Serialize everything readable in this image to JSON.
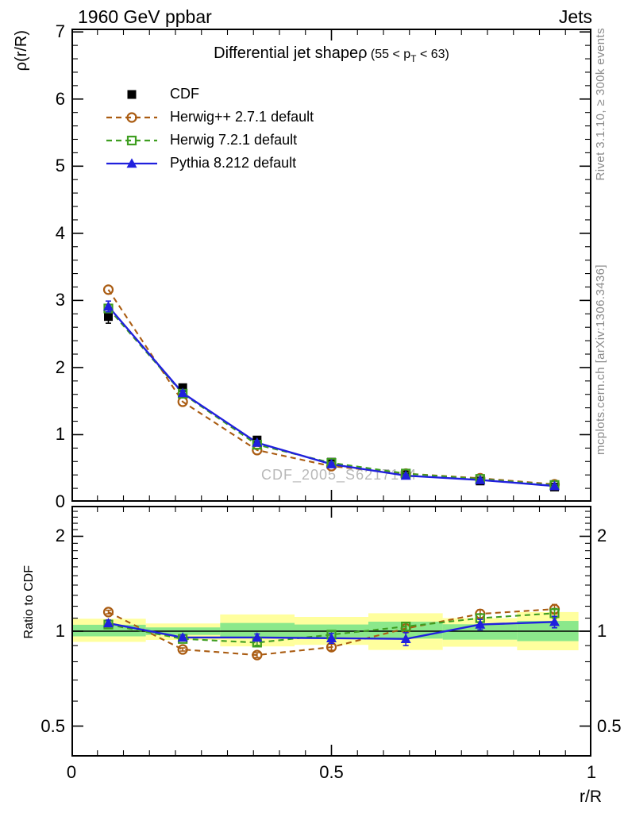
{
  "header": {
    "left": "1960 GeV ppbar",
    "right": "Jets"
  },
  "side_notes": {
    "top_right": "Rivet 3.1.10, ≥ 300k events",
    "bottom_right": "mcplots.cern.ch [arXiv:1306.3436]"
  },
  "watermark": "CDF_2005_S6217184",
  "title": {
    "text": "Differential jet shapeρ",
    "paren_pre": " (55 < p",
    "sub": "T",
    "paren_post": " < 63)"
  },
  "axes": {
    "main_ylabel": "ρ(r/R)",
    "ratio_ylabel": "Ratio to CDF",
    "xlabel": "r/R"
  },
  "colors": {
    "cdf": "#000000",
    "herwigpp": "#aa5c12",
    "herwig7": "#3f9e21",
    "pythia": "#2020dd",
    "band_yellow": "#ffff9e",
    "band_green": "#8be88b",
    "note_gray": "#8c8c8c",
    "watermark_gray": "#b8b8b8"
  },
  "chart_data": [
    {
      "type": "line",
      "panel": "main",
      "title": "Differential jet shapeρ (55 < pT < 63)",
      "ylabel": "ρ(r/R)",
      "xlim": [
        0,
        1
      ],
      "ylim": [
        0,
        7.05
      ],
      "yscale": "linear",
      "grid": false,
      "legend_position": "top-left-inside",
      "x": [
        0.071,
        0.214,
        0.357,
        0.5,
        0.643,
        0.786,
        0.929
      ],
      "series": [
        {
          "name": "CDF",
          "marker": "filled-square",
          "line": "none",
          "color": "#000000",
          "values": [
            2.76,
            1.7,
            0.92,
            0.59,
            0.41,
            0.31,
            0.22
          ],
          "yerr": [
            0.1,
            0.05,
            0.035,
            0.025,
            0.02,
            0.015,
            0.012
          ]
        },
        {
          "name": "Herwig++ 2.7.1 default",
          "marker": "open-circle",
          "line": "dashed",
          "color": "#aa5c12",
          "values": [
            3.16,
            1.49,
            0.77,
            0.53,
            0.42,
            0.35,
            0.26
          ],
          "yerr": [
            0,
            0,
            0,
            0,
            0,
            0,
            0
          ]
        },
        {
          "name": "Herwig 7.2.1 default",
          "marker": "open-square",
          "line": "dashed",
          "color": "#3f9e21",
          "values": [
            2.88,
            1.61,
            0.85,
            0.58,
            0.42,
            0.34,
            0.25
          ],
          "yerr": [
            0.05,
            0.03,
            0.02,
            0.015,
            0.012,
            0.01,
            0.01
          ]
        },
        {
          "name": "Pythia 8.212 default",
          "marker": "filled-triangle",
          "line": "solid",
          "color": "#2020dd",
          "values": [
            2.91,
            1.62,
            0.88,
            0.56,
            0.39,
            0.325,
            0.235
          ],
          "yerr": [
            0.08,
            0.04,
            0.03,
            0.02,
            0.015,
            0.012,
            0.01
          ]
        }
      ],
      "yticks": {
        "major": [
          0,
          1,
          2,
          3,
          4,
          5,
          6,
          7
        ],
        "labels": [
          "0",
          "1",
          "2",
          "3",
          "4",
          "5",
          "6",
          "7"
        ],
        "minor_step": 0.2
      },
      "xticks": {
        "major": [
          0,
          0.5,
          1
        ],
        "labels": [
          "0",
          "0.5",
          "1"
        ],
        "minor_step": 0.05,
        "show_labels": false
      }
    },
    {
      "type": "line",
      "panel": "ratio",
      "title": "Ratio to CDF",
      "ylabel": "Ratio to CDF",
      "xlabel": "r/R",
      "xlim": [
        0,
        1
      ],
      "ylim": [
        0.4,
        2.5
      ],
      "yscale": "log",
      "grid": false,
      "refline": 1,
      "x": [
        0.071,
        0.214,
        0.357,
        0.5,
        0.643,
        0.786,
        0.929
      ],
      "bands": [
        {
          "x0": 0.0,
          "x1": 0.143,
          "yellow": [
            0.925,
            1.095
          ],
          "green": [
            0.963,
            1.048
          ]
        },
        {
          "x0": 0.143,
          "x1": 0.286,
          "yellow": [
            0.938,
            1.058
          ],
          "green": [
            0.973,
            1.028
          ]
        },
        {
          "x0": 0.286,
          "x1": 0.429,
          "yellow": [
            0.895,
            1.13
          ],
          "green": [
            0.953,
            1.062
          ]
        },
        {
          "x0": 0.429,
          "x1": 0.571,
          "yellow": [
            0.905,
            1.11
          ],
          "green": [
            0.957,
            1.05
          ]
        },
        {
          "x0": 0.571,
          "x1": 0.714,
          "yellow": [
            0.872,
            1.14
          ],
          "green": [
            0.947,
            1.072
          ]
        },
        {
          "x0": 0.714,
          "x1": 0.857,
          "yellow": [
            0.893,
            1.1
          ],
          "green": [
            0.94,
            1.052
          ]
        },
        {
          "x0": 0.857,
          "x1": 0.975,
          "yellow": [
            0.87,
            1.15
          ],
          "green": [
            0.93,
            1.078
          ]
        }
      ],
      "series": [
        {
          "name": "Herwig++ 2.7.1 default",
          "marker": "open-circle",
          "line": "dashed",
          "color": "#aa5c12",
          "values": [
            1.15,
            0.875,
            0.84,
            0.89,
            1.02,
            1.135,
            1.175
          ],
          "yerr": [
            0.015,
            0.01,
            0.015,
            0.02,
            0.03,
            0.035,
            0.04
          ]
        },
        {
          "name": "Herwig 7.2.1 default",
          "marker": "open-square",
          "line": "dashed",
          "color": "#3f9e21",
          "values": [
            1.05,
            0.945,
            0.92,
            0.975,
            1.035,
            1.1,
            1.14
          ],
          "yerr": [
            0.018,
            0.012,
            0.018,
            0.025,
            0.03,
            0.035,
            0.04
          ]
        },
        {
          "name": "Pythia 8.212 default",
          "marker": "filled-triangle",
          "line": "solid",
          "color": "#2020dd",
          "values": [
            1.06,
            0.955,
            0.955,
            0.95,
            0.945,
            1.05,
            1.07
          ],
          "yerr": [
            0.025,
            0.018,
            0.025,
            0.035,
            0.045,
            0.04,
            0.045
          ]
        }
      ],
      "yticks": {
        "major": [
          0.5,
          1,
          2
        ],
        "labels": [
          "0.5",
          "1",
          "2"
        ],
        "minor": [
          0.4,
          0.6,
          0.7,
          0.8,
          0.9,
          1.1,
          1.2,
          1.3,
          1.4,
          1.5,
          1.6,
          1.7,
          1.8,
          1.9,
          2.1,
          2.2,
          2.3,
          2.4
        ]
      },
      "xticks": {
        "major": [
          0,
          0.5,
          1
        ],
        "labels": [
          "0",
          "0.5",
          "1"
        ],
        "minor_step": 0.05,
        "show_labels": true
      }
    }
  ]
}
